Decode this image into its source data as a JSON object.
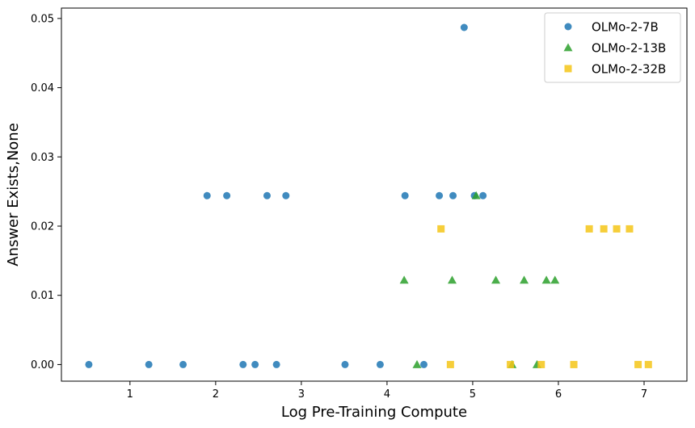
{
  "chart_data": {
    "type": "scatter",
    "xlabel": "Log Pre-Training Compute",
    "ylabel": "Answer Exists,None",
    "xlim": [
      0.2,
      7.5
    ],
    "ylim": [
      -0.0024,
      0.0515
    ],
    "xticks": [
      1,
      2,
      3,
      4,
      5,
      6,
      7
    ],
    "xtick_labels": [
      "1",
      "2",
      "3",
      "4",
      "5",
      "6",
      "7"
    ],
    "yticks": [
      0,
      0.01,
      0.02,
      0.03,
      0.04,
      0.05
    ],
    "ytick_labels": [
      "0.00",
      "0.01",
      "0.02",
      "0.03",
      "0.04",
      "0.05"
    ],
    "grid": false,
    "legend_position": "top-right",
    "series": [
      {
        "name": "OLMo-2-7B",
        "marker": "circle",
        "color": "#1f77b4",
        "points": [
          [
            0.52,
            0.0
          ],
          [
            1.22,
            0.0
          ],
          [
            1.62,
            0.0
          ],
          [
            2.32,
            0.0
          ],
          [
            2.46,
            0.0
          ],
          [
            2.71,
            0.0
          ],
          [
            3.51,
            0.0
          ],
          [
            3.92,
            0.0
          ],
          [
            4.43,
            0.0
          ],
          [
            1.9,
            0.0244
          ],
          [
            2.13,
            0.0244
          ],
          [
            2.6,
            0.0244
          ],
          [
            2.82,
            0.0244
          ],
          [
            4.21,
            0.0244
          ],
          [
            4.61,
            0.0244
          ],
          [
            4.77,
            0.0244
          ],
          [
            5.02,
            0.0244
          ],
          [
            5.12,
            0.0244
          ],
          [
            4.9,
            0.0487
          ]
        ]
      },
      {
        "name": "OLMo-2-13B",
        "marker": "triangle",
        "color": "#2ca02c",
        "points": [
          [
            4.35,
            0.0
          ],
          [
            5.46,
            0.0
          ],
          [
            5.75,
            0.0
          ],
          [
            4.2,
            0.0122
          ],
          [
            4.76,
            0.0122
          ],
          [
            5.27,
            0.0122
          ],
          [
            5.6,
            0.0122
          ],
          [
            5.86,
            0.0122
          ],
          [
            5.96,
            0.0122
          ],
          [
            5.04,
            0.0244
          ]
        ]
      },
      {
        "name": "OLMo-2-32B",
        "marker": "square",
        "color": "#f5c518",
        "points": [
          [
            4.74,
            0.0
          ],
          [
            5.44,
            0.0
          ],
          [
            5.8,
            0.0
          ],
          [
            6.18,
            0.0
          ],
          [
            6.93,
            0.0
          ],
          [
            7.05,
            0.0
          ],
          [
            4.63,
            0.0196
          ],
          [
            6.36,
            0.0196
          ],
          [
            6.53,
            0.0196
          ],
          [
            6.68,
            0.0196
          ],
          [
            6.83,
            0.0196
          ]
        ]
      }
    ]
  }
}
